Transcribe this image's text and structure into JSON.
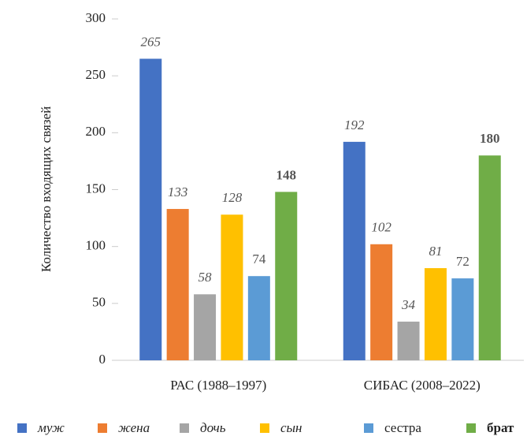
{
  "chart_data": {
    "type": "bar",
    "y_label": "Количество входящих связей",
    "categories": [
      "РАС (1988–1997)",
      "СИБАС (2008–2022)"
    ],
    "series": [
      {
        "name": "муж",
        "color": "#4472c4",
        "font_style": "italic",
        "values": [
          265,
          192
        ]
      },
      {
        "name": "жена",
        "color": "#ed7d31",
        "font_style": "italic",
        "values": [
          133,
          102
        ]
      },
      {
        "name": "дочь",
        "color": "#a5a5a5",
        "font_style": "italic",
        "values": [
          58,
          34
        ]
      },
      {
        "name": "сын",
        "color": "#ffc000",
        "font_style": "italic",
        "values": [
          128,
          81
        ]
      },
      {
        "name": "сестра",
        "color": "#5b9bd5",
        "font_style": "normal",
        "values": [
          74,
          72
        ]
      },
      {
        "name": "брат",
        "color": "#70ad47",
        "font_style": "bold",
        "values": [
          148,
          180
        ]
      }
    ],
    "ylim": [
      0,
      300
    ],
    "yticks": [
      0,
      50,
      100,
      150,
      200,
      250,
      300
    ],
    "grid": false,
    "legend": "bottom"
  }
}
